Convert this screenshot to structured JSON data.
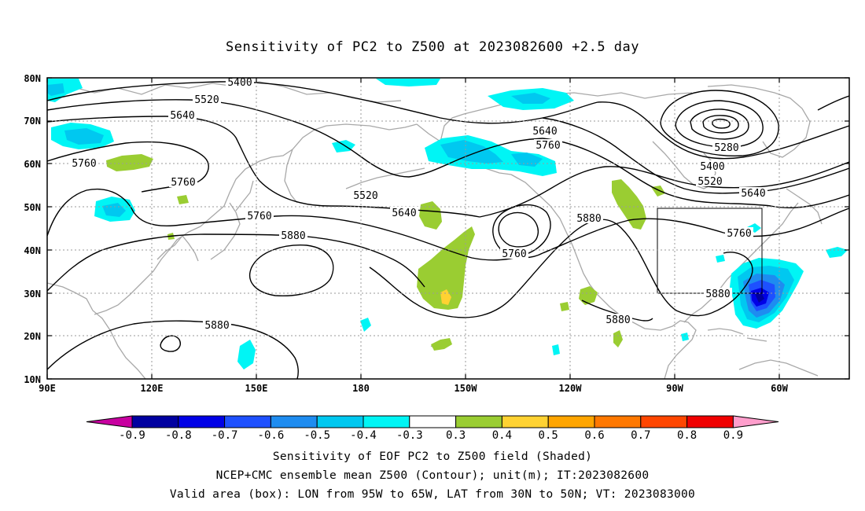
{
  "title": "Sensitivity of PC2 to Z500 at 2023082600 +2.5 day",
  "lat_labels": [
    "80N",
    "70N",
    "60N",
    "50N",
    "40N",
    "30N",
    "20N",
    "10N"
  ],
  "lon_labels": [
    "90E",
    "120E",
    "150E",
    "180",
    "150W",
    "120W",
    "90W",
    "60W"
  ],
  "contour_labels": [
    "5400",
    "5520",
    "5640",
    "5760",
    "5760",
    "5760",
    "5880",
    "5880",
    "5520",
    "5640",
    "5640",
    "5760",
    "5880",
    "5760",
    "5880",
    "5280",
    "5400",
    "5520",
    "5640",
    "5760",
    "5880"
  ],
  "colorbar": {
    "labels": [
      "-0.9",
      "-0.8",
      "-0.7",
      "-0.6",
      "-0.5",
      "-0.4",
      "-0.3",
      "0.3",
      "0.4",
      "0.5",
      "0.6",
      "0.7",
      "0.8",
      "0.9"
    ],
    "colors": [
      "#0000a0",
      "#0000e6",
      "#1e50ff",
      "#1e8cf0",
      "#00c8f0",
      "#00f5f5",
      "#ffffff",
      "#9acd32",
      "#ffd232",
      "#ffa500",
      "#ff7800",
      "#ff4600",
      "#f00000"
    ],
    "low_end_color": "#c800a0",
    "high_end_color": "#ff9ecc"
  },
  "captions": [
    "Sensitivity of EOF PC2 to Z500 field (Shaded)",
    "NCEP+CMC ensemble mean Z500 (Contour); unit(m); IT:2023082600",
    "Valid area (box): LON from 95W to 65W, LAT from 30N to 50N; VT: 2023083000"
  ],
  "map": {
    "lon_range": [
      "90E",
      "37W"
    ],
    "lat_range": [
      "10N",
      "80N"
    ],
    "valid_box": {
      "lon": [
        "95W",
        "65W"
      ],
      "lat": [
        "30N",
        "50N"
      ]
    },
    "grid": true,
    "coastline_color": "#a0a0a0"
  }
}
